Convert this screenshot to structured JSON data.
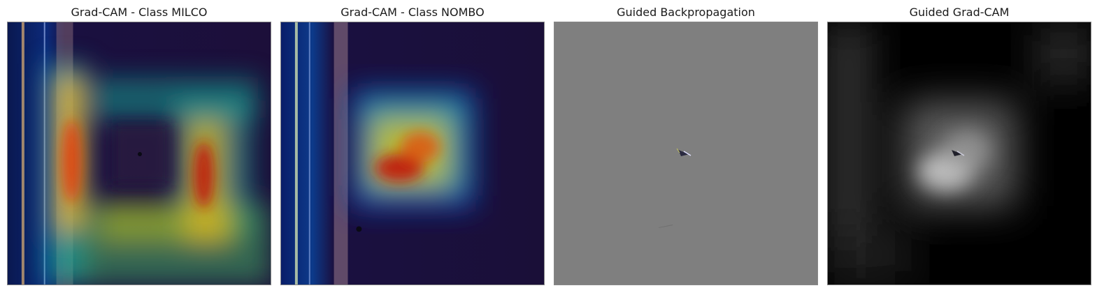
{
  "figure": {
    "panels": [
      {
        "id": "milco",
        "title": "Grad-CAM - Class MILCO"
      },
      {
        "id": "nombo",
        "title": "Grad-CAM - Class NOMBO"
      },
      {
        "id": "guided-bp",
        "title": "Guided Backpropagation"
      },
      {
        "id": "guided-gradcam",
        "title": "Guided Grad-CAM"
      }
    ]
  }
}
